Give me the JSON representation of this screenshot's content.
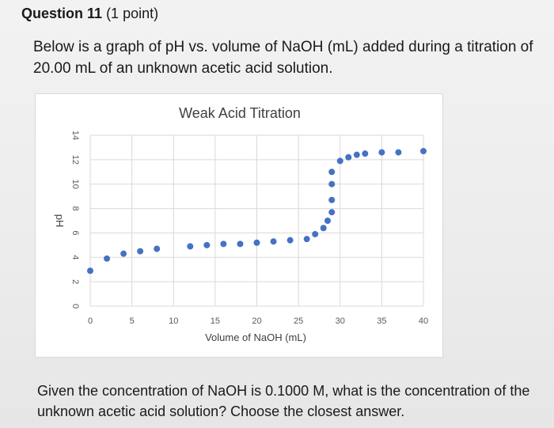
{
  "question": {
    "title": "Question 11",
    "points": "(1 point)",
    "prompt": "Below is a graph of pH vs. volume of NaOH (mL) added during a titration of 20.00 mL of an unknown acetic acid solution.",
    "followup": "Given the concentration of NaOH is 0.1000 M, what is the concentration of the unknown acetic acid solution? Choose the closest answer."
  },
  "chart_data": {
    "type": "scatter",
    "title": "Weak Acid Titration",
    "xlabel": "Volume of NaOH (mL)",
    "ylabel": "pH",
    "xlim": [
      0,
      40
    ],
    "ylim": [
      0,
      14
    ],
    "xticks": [
      "0",
      "5",
      "10",
      "15",
      "20",
      "25",
      "30",
      "35",
      "40"
    ],
    "yticks": [
      "0",
      "2",
      "4",
      "6",
      "8",
      "10",
      "12",
      "14"
    ],
    "grid": true,
    "marker_color": "#4472c4",
    "series": [
      {
        "x": [
          0,
          2,
          4,
          6,
          8,
          12,
          14,
          16,
          18,
          20,
          22,
          24,
          26,
          27,
          28,
          28.5,
          29,
          29,
          29,
          29,
          30,
          31,
          32,
          33,
          35,
          37,
          40
        ],
        "y": [
          2.9,
          3.9,
          4.3,
          4.5,
          4.7,
          4.9,
          5.0,
          5.1,
          5.1,
          5.2,
          5.3,
          5.4,
          5.5,
          5.9,
          6.4,
          7.0,
          7.7,
          8.7,
          10.0,
          11.0,
          11.9,
          12.2,
          12.4,
          12.5,
          12.6,
          12.6,
          12.7
        ]
      }
    ]
  }
}
